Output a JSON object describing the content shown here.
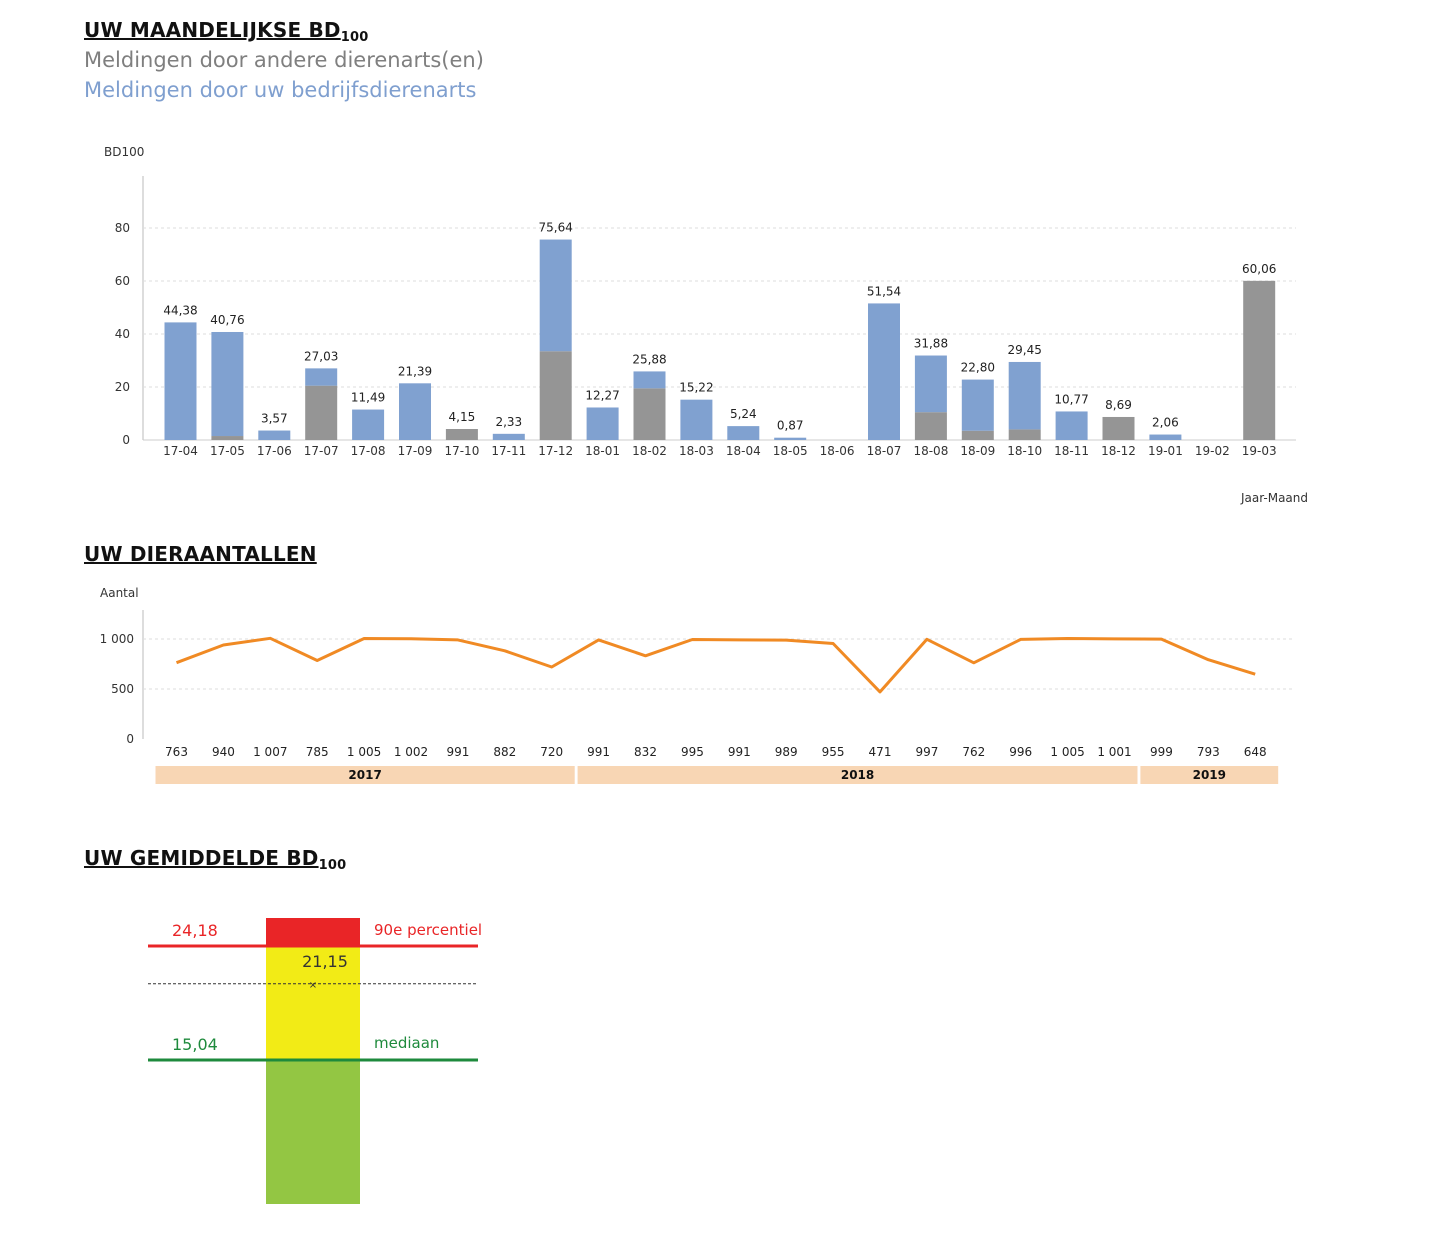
{
  "colors": {
    "other_vet": "#959595",
    "own_vet": "#80a1d0",
    "line": "#f08a24",
    "year_band": "#f8d6b4",
    "red": "#e92527",
    "yellow": "#f2eb16",
    "green": "#93c643",
    "median_line": "#1e8a3c",
    "grid": "#dddddd"
  },
  "section1": {
    "title": "UW MAANDELIJKSE BD",
    "title_sub": "100",
    "legend_other": "Meldingen door andere dierenarts(en)",
    "legend_own": "Meldingen door uw bedrijfsdierenarts"
  },
  "section2": {
    "title": "UW DIERAANTALLEN"
  },
  "section3": {
    "title": "UW GEMIDDELDE BD",
    "title_sub": "100"
  },
  "chart_data": [
    {
      "type": "bar",
      "stacked": true,
      "ylabel": "BD100",
      "xlabel": "Jaar-Maand",
      "ylim": [
        0,
        80
      ],
      "yticks": [
        "0",
        "20",
        "40",
        "60",
        "80"
      ],
      "grid": true,
      "categories": [
        "17-04",
        "17-05",
        "17-06",
        "17-07",
        "17-08",
        "17-09",
        "17-10",
        "17-11",
        "17-12",
        "18-01",
        "18-02",
        "18-03",
        "18-04",
        "18-05",
        "18-06",
        "18-07",
        "18-08",
        "18-09",
        "18-10",
        "18-11",
        "18-12",
        "19-01",
        "19-02",
        "19-03"
      ],
      "totals": [
        "44,38",
        "40,76",
        "3,57",
        "27,03",
        "11,49",
        "21,39",
        "4,15",
        "2,33",
        "75,64",
        "12,27",
        "25,88",
        "15,22",
        "5,24",
        "0,87",
        "",
        "51,54",
        "31,88",
        "22,80",
        "29,45",
        "10,77",
        "8,69",
        "2,06",
        "",
        "60,06"
      ],
      "series": [
        {
          "name": "Meldingen door andere dierenarts(en)",
          "values": [
            0,
            1.5,
            0,
            20.5,
            0,
            0,
            4.15,
            0,
            33.5,
            0,
            19.5,
            0,
            0,
            0,
            0,
            0,
            10.5,
            3.5,
            4,
            0,
            8.69,
            0,
            0,
            60.06
          ]
        },
        {
          "name": "Meldingen door uw bedrijfsdierenarts",
          "values": [
            44.38,
            39.26,
            3.57,
            6.53,
            11.49,
            21.39,
            0,
            2.33,
            42.14,
            12.27,
            6.38,
            15.22,
            5.24,
            0.87,
            0,
            51.54,
            21.38,
            19.3,
            25.45,
            10.77,
            0,
            2.06,
            0,
            0
          ]
        }
      ]
    },
    {
      "type": "line",
      "ylabel": "Aantal",
      "ylim": [
        0,
        1000
      ],
      "yticks": [
        "0",
        "500",
        "1 000"
      ],
      "grid": true,
      "values": [
        763,
        940,
        1007,
        785,
        1005,
        1002,
        991,
        882,
        720,
        991,
        832,
        995,
        991,
        989,
        955,
        471,
        997,
        762,
        996,
        1005,
        1001,
        999,
        793,
        648
      ],
      "labels": [
        "763",
        "940",
        "1 007",
        "785",
        "1 005",
        "1 002",
        "991",
        "882",
        "720",
        "991",
        "832",
        "995",
        "991",
        "989",
        "955",
        "471",
        "997",
        "762",
        "996",
        "1 005",
        "1 001",
        "999",
        "793",
        "648"
      ],
      "years": [
        {
          "label": "2017",
          "count": 9
        },
        {
          "label": "2018",
          "count": 12
        },
        {
          "label": "2019",
          "count": 3
        }
      ]
    },
    {
      "type": "gauge",
      "ylim": [
        0,
        24.18
      ],
      "value": 21.15,
      "value_label": "21,15",
      "p90": 24.18,
      "p90_label": "24,18",
      "p90_text": "90e percentiel",
      "median": 15.04,
      "median_label": "15,04",
      "median_text": "mediaan"
    }
  ]
}
